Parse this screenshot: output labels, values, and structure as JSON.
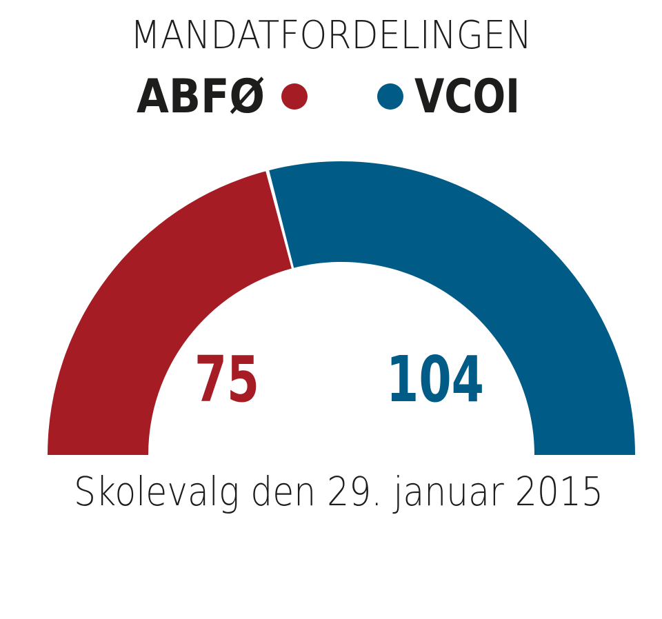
{
  "chart_data": {
    "type": "pie",
    "title": "MANDATFORDELINGEN",
    "subtitle": "Skolevalg den 29. januar 2015",
    "categories": [
      "ABFØ",
      "VCOI"
    ],
    "values": [
      75,
      104
    ],
    "colors": [
      "#a51c24",
      "#005b86"
    ],
    "legend": "top"
  }
}
